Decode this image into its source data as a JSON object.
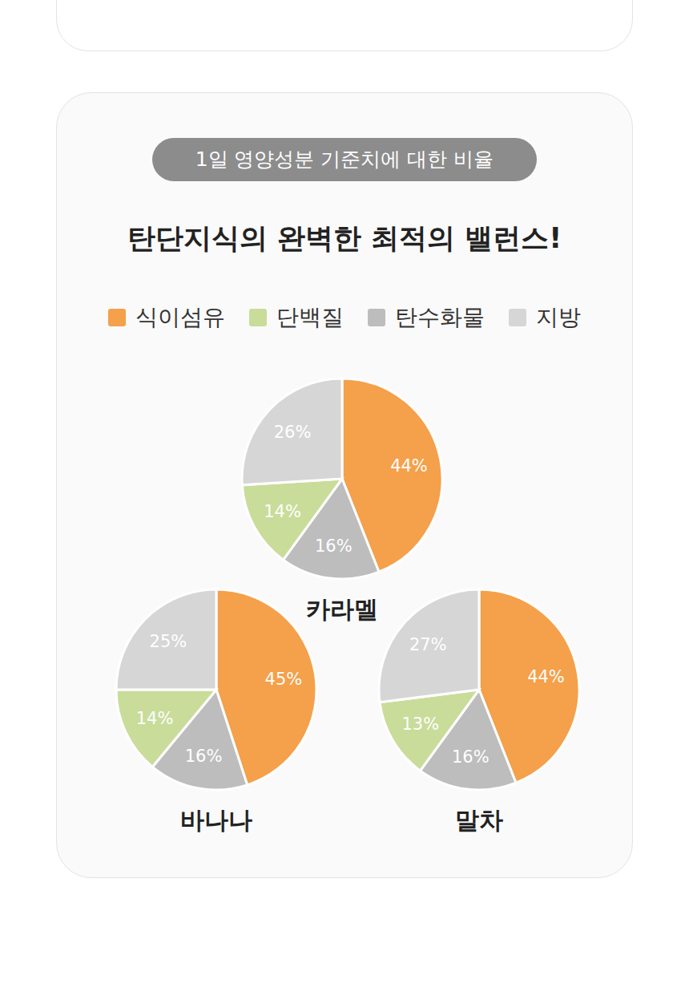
{
  "header": {
    "badge": "1일 영양성분 기준치에 대한 비율",
    "title": "탄단지식의 완벽한 최적의 밸런스!"
  },
  "legend_entries": [
    {
      "name": "식이섬유",
      "color": "#F5A04A"
    },
    {
      "name": "단백질",
      "color": "#C9DC9A"
    },
    {
      "name": "탄수화물",
      "color": "#BDBDBD"
    },
    {
      "name": "지방",
      "color": "#D6D6D6"
    }
  ],
  "chart_data": [
    {
      "type": "pie",
      "title": "카라멜",
      "categories": [
        "식이섬유",
        "탄수화물",
        "단백질",
        "지방"
      ],
      "values": [
        44,
        16,
        14,
        26
      ],
      "value_labels": [
        "44%",
        "16%",
        "14%",
        "26%"
      ],
      "colors": [
        "#F5A04A",
        "#BDBDBD",
        "#C9DC9A",
        "#D6D6D6"
      ],
      "data_labels": true
    },
    {
      "type": "pie",
      "title": "바나나",
      "categories": [
        "식이섬유",
        "탄수화물",
        "단백질",
        "지방"
      ],
      "values": [
        45,
        16,
        14,
        25
      ],
      "value_labels": [
        "45%",
        "16%",
        "14%",
        "25%"
      ],
      "colors": [
        "#F5A04A",
        "#BDBDBD",
        "#C9DC9A",
        "#D6D6D6"
      ],
      "data_labels": true
    },
    {
      "type": "pie",
      "title": "말차",
      "categories": [
        "식이섬유",
        "탄수화물",
        "단백질",
        "지방"
      ],
      "values": [
        44,
        16,
        13,
        27
      ],
      "value_labels": [
        "44%",
        "16%",
        "13%",
        "27%"
      ],
      "colors": [
        "#F5A04A",
        "#BDBDBD",
        "#C9DC9A",
        "#D6D6D6"
      ],
      "data_labels": true
    }
  ]
}
